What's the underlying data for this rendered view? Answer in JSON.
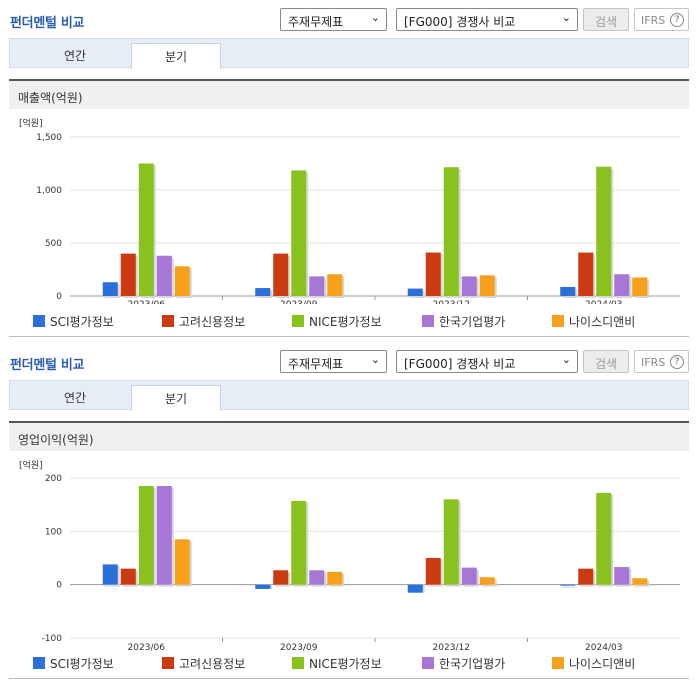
{
  "colors": [
    "#2b6fdb",
    "#cc3a12",
    "#89c11e",
    "#a777d6",
    "#f6a01c"
  ],
  "sections": [
    {
      "title": "펀더멘털 비교",
      "select1": "주재무제표",
      "select2": "[FG000] 경쟁사 비교",
      "search_label": "검색",
      "ifrs_label": "IFRS",
      "help_glyph": "?",
      "tabs": [
        "연간",
        "분기"
      ],
      "active_tab": 1,
      "metric_label": "매출액(억원)",
      "unit_label": "[억원]"
    },
    {
      "title": "펀더멘털 비교",
      "select1": "주재무제표",
      "select2": "[FG000] 경쟁사 비교",
      "search_label": "검색",
      "ifrs_label": "IFRS",
      "help_glyph": "?",
      "tabs": [
        "연간",
        "분기"
      ],
      "active_tab": 1,
      "metric_label": "영업이익(억원)",
      "unit_label": "[억원]"
    }
  ],
  "chart_data": [
    {
      "type": "bar",
      "title": "매출액(억원)",
      "ylabel": "[억원]",
      "categories": [
        "2023/06",
        "2023/09",
        "2023/12",
        "2024/03"
      ],
      "ylim": [
        0,
        1500
      ],
      "yticks": [
        "0",
        "500",
        "1,000",
        "1,500"
      ],
      "ytick_values": [
        0,
        500,
        1000,
        1500
      ],
      "grid": true,
      "legend": "bottom",
      "series": [
        {
          "name": "SCI평가정보",
          "values": [
            130,
            75,
            70,
            85
          ]
        },
        {
          "name": "고려신용정보",
          "values": [
            400,
            400,
            410,
            410
          ]
        },
        {
          "name": "NICE평가정보",
          "values": [
            1250,
            1185,
            1215,
            1220
          ]
        },
        {
          "name": "한국기업평가",
          "values": [
            380,
            185,
            185,
            205
          ]
        },
        {
          "name": "나이스디앤비",
          "values": [
            280,
            205,
            195,
            175
          ]
        }
      ]
    },
    {
      "type": "bar",
      "title": "영업이익(억원)",
      "ylabel": "[억원]",
      "categories": [
        "2023/06",
        "2023/09",
        "2023/12",
        "2024/03"
      ],
      "ylim": [
        -100,
        200
      ],
      "yticks": [
        "-100",
        "0",
        "100",
        "200"
      ],
      "ytick_values": [
        -100,
        0,
        100,
        200
      ],
      "grid": true,
      "legend": "bottom",
      "series": [
        {
          "name": "SCI평가정보",
          "values": [
            38,
            -8,
            -15,
            0
          ]
        },
        {
          "name": "고려신용정보",
          "values": [
            30,
            27,
            50,
            30
          ]
        },
        {
          "name": "NICE평가정보",
          "values": [
            185,
            157,
            160,
            172
          ]
        },
        {
          "name": "한국기업평가",
          "values": [
            185,
            27,
            32,
            33
          ]
        },
        {
          "name": "나이스디앤비",
          "values": [
            85,
            24,
            14,
            12
          ]
        }
      ]
    }
  ]
}
